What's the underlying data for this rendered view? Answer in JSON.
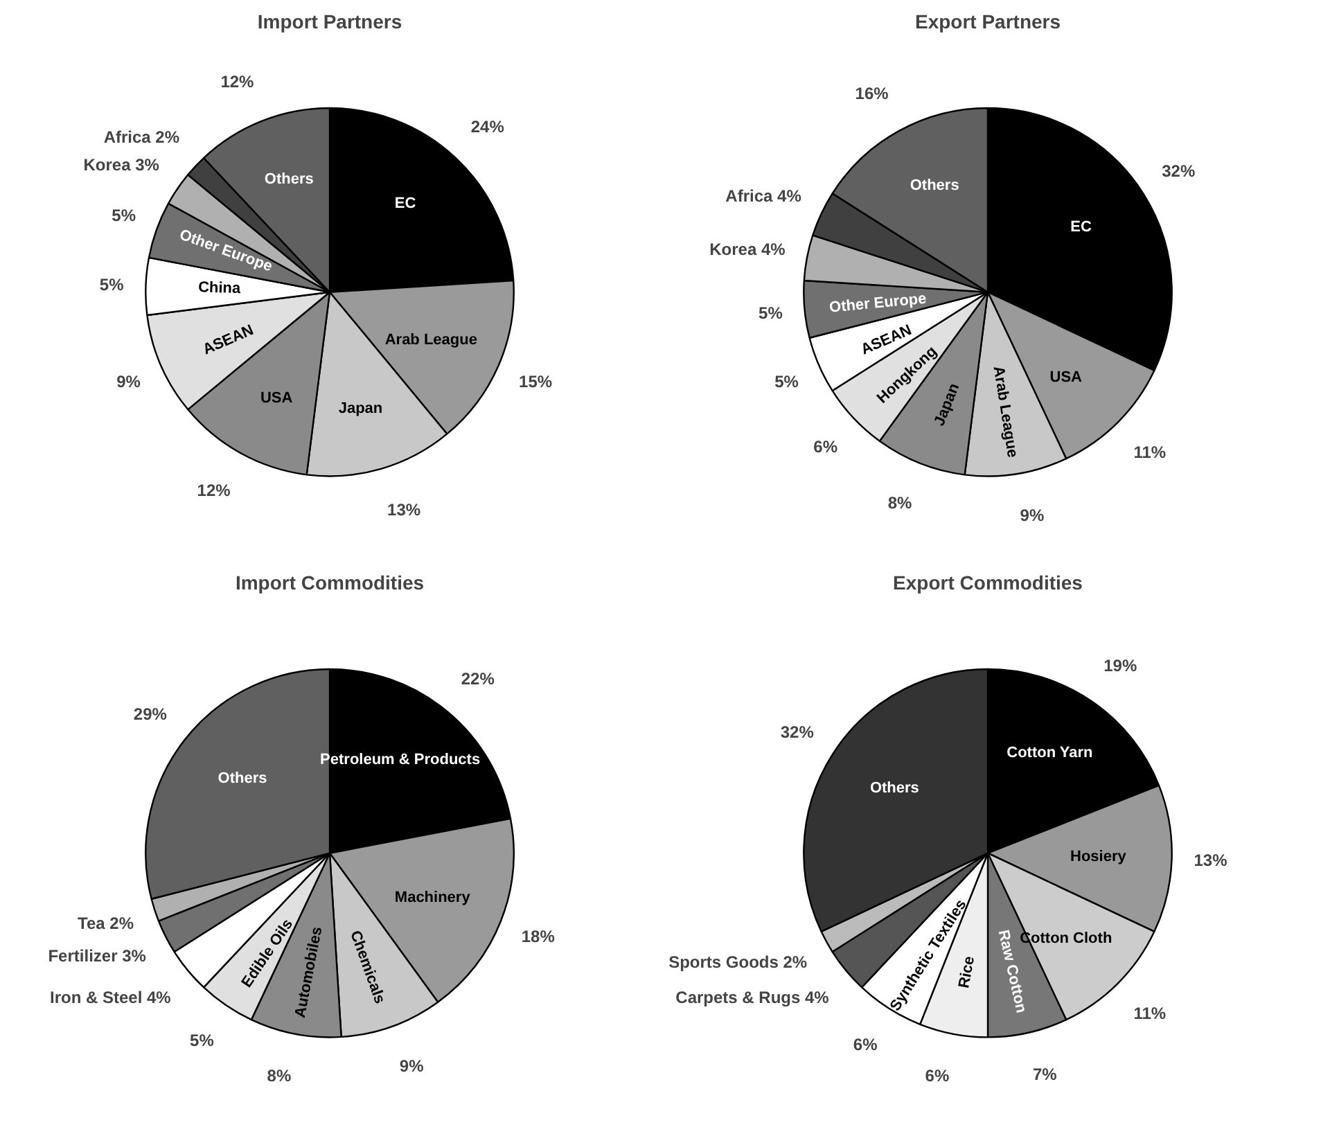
{
  "chart_data": [
    {
      "type": "pie",
      "title": "Import Partners",
      "categories": [
        "EC",
        "Arab League",
        "Japan",
        "USA",
        "ASEAN",
        "China",
        "Other Europe",
        "Korea",
        "Africa",
        "Others"
      ],
      "values": [
        24,
        15,
        13,
        12,
        9,
        5,
        5,
        3,
        2,
        12
      ],
      "value_labels": [
        "24%",
        "15%",
        "13%",
        "12%",
        "9%",
        "5%",
        "5%",
        "3%",
        "2%",
        "12%"
      ],
      "colors": [
        "#000000",
        "#9a9a9a",
        "#c8c8c8",
        "#8a8a8a",
        "#e0e0e0",
        "#ffffff",
        "#707070",
        "#b0b0b0",
        "#404040",
        "#606060"
      ]
    },
    {
      "type": "pie",
      "title": "Export Partners",
      "categories": [
        "EC",
        "USA",
        "Arab League",
        "Japan",
        "Hongkong",
        "ASEAN",
        "Other Europe",
        "Korea",
        "Africa",
        "Others"
      ],
      "values": [
        32,
        11,
        9,
        8,
        6,
        5,
        5,
        4,
        4,
        16
      ],
      "value_labels": [
        "32%",
        "11%",
        "9%",
        "8%",
        "6%",
        "5%",
        "5%",
        "4%",
        "4%",
        "16%"
      ],
      "colors": [
        "#000000",
        "#9a9a9a",
        "#c8c8c8",
        "#8a8a8a",
        "#e0e0e0",
        "#ffffff",
        "#707070",
        "#b0b0b0",
        "#404040",
        "#606060"
      ]
    },
    {
      "type": "pie",
      "title": "Import Commodities",
      "categories": [
        "Petroleum & Products",
        "Machinery",
        "Chemicals",
        "Automobiles",
        "Edible Oils",
        "Iron & Steel",
        "Fertilizer",
        "Tea",
        "Others"
      ],
      "values": [
        22,
        18,
        9,
        8,
        5,
        4,
        3,
        2,
        29
      ],
      "value_labels": [
        "22%",
        "18%",
        "9%",
        "8%",
        "5%",
        "4%",
        "3%",
        "2%",
        "29%"
      ],
      "colors": [
        "#000000",
        "#9a9a9a",
        "#c8c8c8",
        "#8a8a8a",
        "#e0e0e0",
        "#ffffff",
        "#707070",
        "#b0b0b0",
        "#606060"
      ]
    },
    {
      "type": "pie",
      "title": "Export Commodities",
      "categories": [
        "Cotton Yarn",
        "Hosiery",
        "Cotton Cloth",
        "Raw Cotton",
        "Rice",
        "Synthetic Textiles",
        "Carpets & Rugs",
        "Sports Goods",
        "Others"
      ],
      "values": [
        19,
        13,
        11,
        7,
        6,
        6,
        4,
        2,
        32
      ],
      "value_labels": [
        "19%",
        "13%",
        "11%",
        "7%",
        "6%",
        "6%",
        "4%",
        "2%",
        "32%"
      ],
      "colors": [
        "#000000",
        "#999999",
        "#cccccc",
        "#777777",
        "#eeeeee",
        "#ffffff",
        "#555555",
        "#bbbbbb",
        "#333333"
      ]
    }
  ]
}
